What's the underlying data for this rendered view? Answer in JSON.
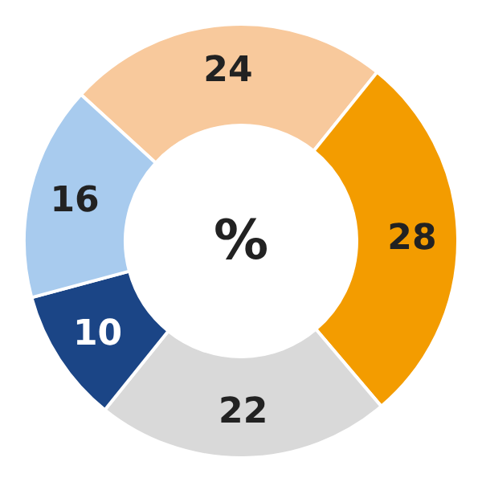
{
  "chart_data": {
    "type": "donut",
    "categories": [
      null,
      null,
      null,
      null,
      null
    ],
    "values": [
      24,
      28,
      22,
      10,
      16
    ],
    "colors": [
      "#f8c99c",
      "#f39c00",
      "#d9d9d9",
      "#1b4586",
      "#a8cbee"
    ],
    "data_labels": true,
    "annotations": [
      "%"
    ]
  }
}
